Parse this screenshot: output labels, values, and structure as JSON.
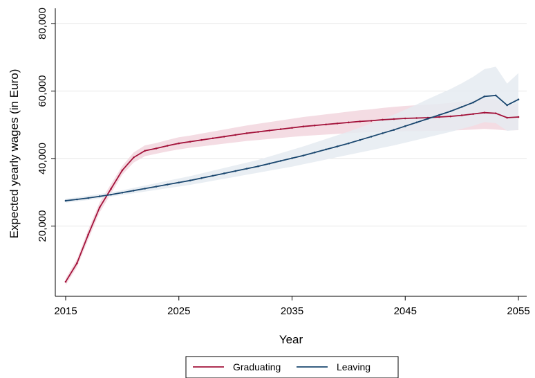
{
  "chart_data": {
    "type": "line",
    "title": "",
    "xlabel": "Year",
    "ylabel": "Expected yearly wages (in Euro)",
    "xlim": [
      2015,
      2055
    ],
    "ylim": [
      0,
      80000
    ],
    "x_ticks": [
      2015,
      2025,
      2035,
      2045,
      2055
    ],
    "x_tick_labels": [
      "2015",
      "2025",
      "2035",
      "2045",
      "2055"
    ],
    "y_ticks": [
      20000,
      40000,
      60000,
      80000
    ],
    "y_tick_labels": [
      "20,000",
      "40,000",
      "60,000",
      "80,000"
    ],
    "grid": "horizontal",
    "legend_position": "bottom",
    "x": [
      2015,
      2016,
      2017,
      2018,
      2019,
      2020,
      2021,
      2022,
      2023,
      2024,
      2025,
      2026,
      2027,
      2028,
      2029,
      2030,
      2031,
      2032,
      2033,
      2034,
      2035,
      2036,
      2037,
      2038,
      2039,
      2040,
      2041,
      2042,
      2043,
      2044,
      2045,
      2046,
      2047,
      2048,
      2049,
      2050,
      2051,
      2052,
      2053,
      2054,
      2055
    ],
    "series": [
      {
        "name": "Graduating",
        "color": "#a3123a",
        "band_color": "#f2d6de",
        "values": [
          3500,
          9000,
          17500,
          25500,
          31000,
          36500,
          40300,
          42300,
          43000,
          43800,
          44500,
          45000,
          45500,
          46000,
          46500,
          47000,
          47500,
          47900,
          48300,
          48700,
          49100,
          49500,
          49800,
          50100,
          50400,
          50700,
          51000,
          51200,
          51500,
          51700,
          51900,
          52000,
          52100,
          52300,
          52500,
          52800,
          53200,
          53600,
          53400,
          52100,
          52300
        ],
        "lower": [
          2500,
          7800,
          16000,
          24000,
          29600,
          35200,
          38800,
          40700,
          41400,
          42100,
          42700,
          43200,
          43600,
          44000,
          44400,
          44800,
          45200,
          45500,
          45800,
          46100,
          46400,
          46700,
          46900,
          47100,
          47300,
          47500,
          47700,
          47800,
          47900,
          48000,
          48100,
          48100,
          48200,
          48200,
          48300,
          48400,
          48600,
          48800,
          48600,
          48300,
          48400
        ],
        "upper": [
          4500,
          10200,
          19000,
          27000,
          32400,
          37800,
          41800,
          43900,
          44600,
          45500,
          46300,
          46800,
          47400,
          48000,
          48600,
          49200,
          49800,
          50300,
          50800,
          51300,
          51800,
          52300,
          52700,
          53100,
          53500,
          53900,
          54300,
          54600,
          55000,
          55300,
          55600,
          55800,
          56000,
          56200,
          56500,
          56900,
          57300,
          57800,
          57600,
          56000,
          56300
        ]
      },
      {
        "name": "Leaving",
        "color": "#1a476f",
        "band_color": "#e5ebf1",
        "values": [
          27500,
          27900,
          28300,
          28800,
          29300,
          29900,
          30500,
          31100,
          31700,
          32300,
          32900,
          33500,
          34200,
          34900,
          35600,
          36300,
          37000,
          37700,
          38500,
          39300,
          40100,
          40900,
          41800,
          42700,
          43600,
          44500,
          45500,
          46500,
          47500,
          48500,
          49600,
          50700,
          51800,
          52900,
          54000,
          55300,
          56600,
          58400,
          58700,
          55800,
          57500
        ],
        "lower": [
          26900,
          27300,
          27700,
          28200,
          28700,
          29200,
          29700,
          30200,
          30700,
          31200,
          31700,
          32200,
          32800,
          33400,
          34000,
          34600,
          35200,
          35800,
          36400,
          37000,
          37600,
          38300,
          39000,
          39700,
          40400,
          41100,
          41800,
          42500,
          43200,
          43900,
          44700,
          45500,
          46300,
          47100,
          47900,
          48800,
          49700,
          50800,
          50500,
          48200,
          48500
        ],
        "upper": [
          28100,
          28500,
          29000,
          29500,
          30000,
          30600,
          31300,
          32000,
          32700,
          33400,
          34100,
          34800,
          35600,
          36400,
          37200,
          38000,
          38800,
          39600,
          40600,
          41600,
          42600,
          43600,
          44700,
          45800,
          46900,
          48000,
          49200,
          50400,
          51700,
          53000,
          54500,
          56000,
          57600,
          59100,
          60600,
          62300,
          64200,
          66500,
          67200,
          62200,
          65300
        ]
      }
    ]
  }
}
